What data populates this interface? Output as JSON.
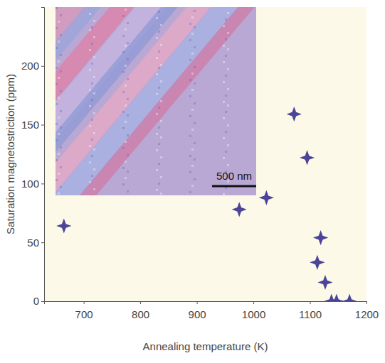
{
  "chart_data": {
    "type": "scatter",
    "x_label": "Annealing temperature (K)",
    "y_label": "Saturation magnetostriction (ppm)",
    "x": [
      665,
      975,
      1023,
      1072,
      1095,
      1119,
      1113,
      1127,
      1138,
      1147,
      1170
    ],
    "y": [
      64,
      78,
      88,
      159,
      122,
      54,
      33,
      16,
      0,
      0,
      0
    ],
    "color": "#4b4597",
    "marker": "star",
    "xlim": [
      630,
      1200
    ],
    "xticks": [
      700,
      800,
      900,
      1000,
      1100,
      1200
    ],
    "ylim": [
      0,
      250
    ],
    "yticks": [
      0,
      50,
      100,
      150,
      200
    ],
    "grid": false,
    "annotations": [
      {
        "text": "500 nm"
      }
    ]
  }
}
